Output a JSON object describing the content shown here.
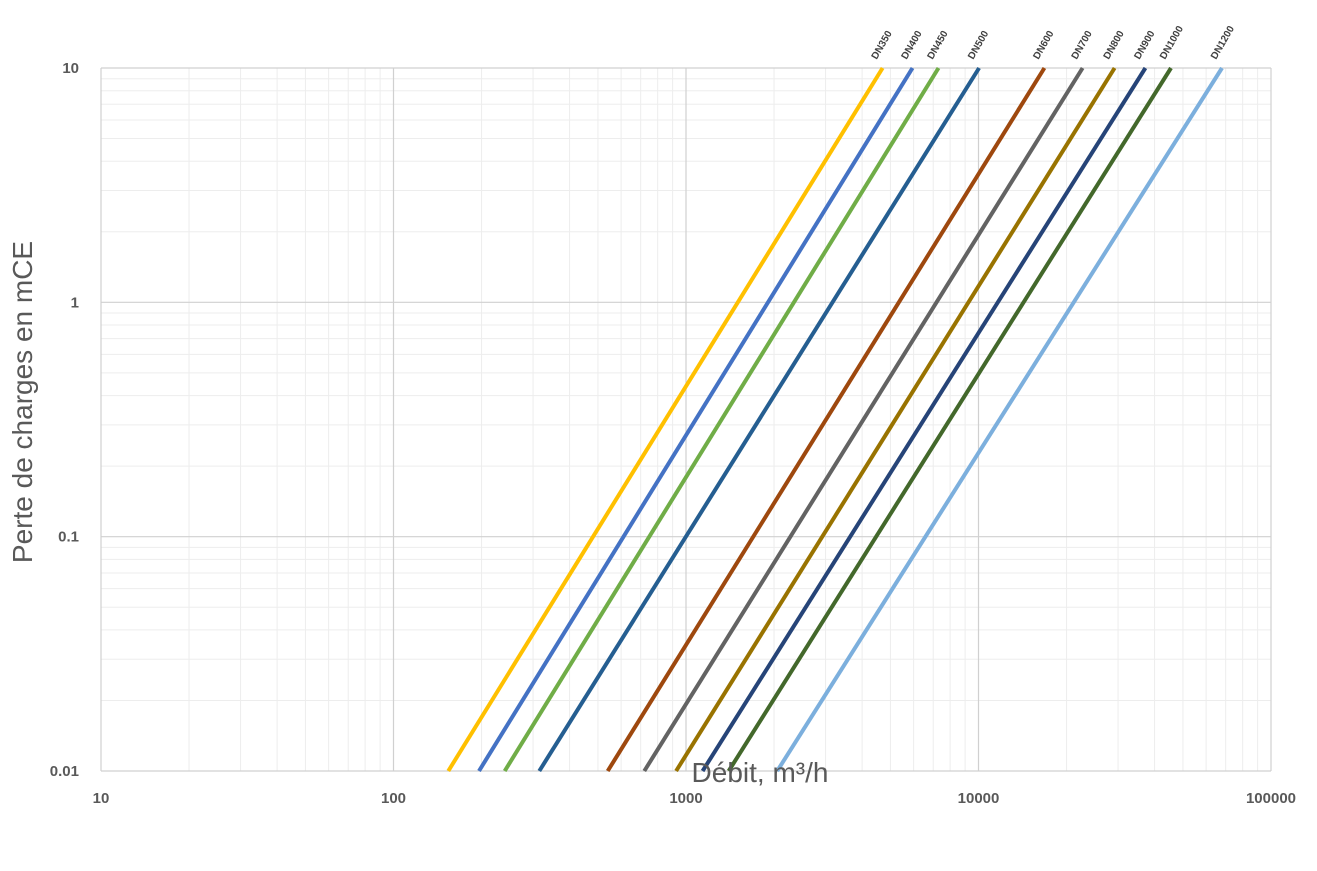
{
  "chart_data": {
    "type": "line",
    "title": "",
    "xlabel": "Débit, m³/h",
    "ylabel": "Perte de charges en mCE",
    "x_scale": "log",
    "y_scale": "log",
    "xlim": [
      10,
      100000
    ],
    "ylim": [
      0.01,
      10
    ],
    "x_ticks": [
      10,
      100,
      1000,
      10000,
      100000
    ],
    "x_tick_labels": [
      "10",
      "100",
      "1000",
      "10000",
      "100000"
    ],
    "y_ticks": [
      0.01,
      0.1,
      1,
      10
    ],
    "y_tick_labels": [
      "0.01",
      "0.1",
      "1",
      "10"
    ],
    "grid": true,
    "minor_grid": true,
    "legend": "labels at top end of each line",
    "series": [
      {
        "name": "DN350",
        "color": "#FFC000",
        "x": [
          154,
          4700
        ],
        "y": [
          0.01,
          10
        ]
      },
      {
        "name": "DN400",
        "color": "#4472C4",
        "x": [
          196,
          5950
        ],
        "y": [
          0.01,
          10
        ]
      },
      {
        "name": "DN450",
        "color": "#70AD47",
        "x": [
          240,
          7300
        ],
        "y": [
          0.01,
          10
        ]
      },
      {
        "name": "DN500",
        "color": "#255E91",
        "x": [
          315,
          10050
        ],
        "y": [
          0.01,
          10
        ]
      },
      {
        "name": "DN600",
        "color": "#9E480E",
        "x": [
          540,
          16800
        ],
        "y": [
          0.01,
          10
        ]
      },
      {
        "name": "DN700",
        "color": "#636363",
        "x": [
          720,
          22700
        ],
        "y": [
          0.01,
          10
        ]
      },
      {
        "name": "DN800",
        "color": "#997300",
        "x": [
          925,
          29200
        ],
        "y": [
          0.01,
          10
        ]
      },
      {
        "name": "DN900",
        "color": "#264478",
        "x": [
          1140,
          37200
        ],
        "y": [
          0.01,
          10
        ]
      },
      {
        "name": "DN1000",
        "color": "#43682B",
        "x": [
          1400,
          45500
        ],
        "y": [
          0.01,
          10
        ]
      },
      {
        "name": "DN1200",
        "color": "#7CAFDD",
        "x": [
          2050,
          68000
        ],
        "y": [
          0.01,
          10
        ]
      }
    ]
  }
}
